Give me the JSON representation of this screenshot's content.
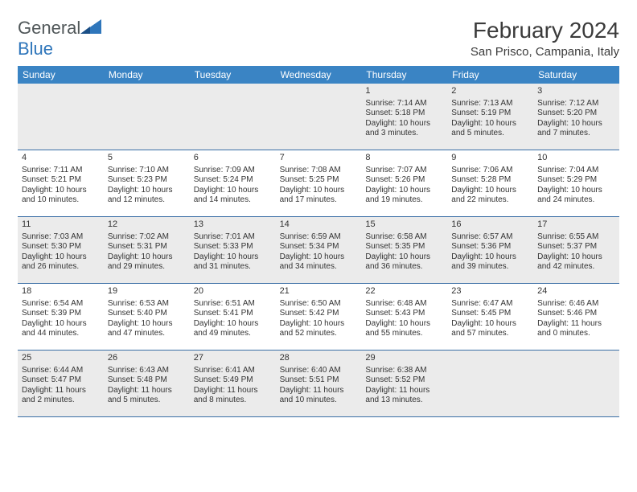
{
  "logo": {
    "text1": "General",
    "text2": "Blue"
  },
  "title": "February 2024",
  "location": "San Prisco, Campania, Italy",
  "colors": {
    "header_bg": "#3a84c4",
    "header_text": "#ffffff",
    "row_border": "#3a6ea5",
    "shaded_bg": "#ebebeb",
    "body_text": "#333333",
    "logo_gray": "#505759",
    "logo_blue": "#2f76bb",
    "page_bg": "#ffffff"
  },
  "weekdays": [
    "Sunday",
    "Monday",
    "Tuesday",
    "Wednesday",
    "Thursday",
    "Friday",
    "Saturday"
  ],
  "weeks": [
    [
      {
        "n": "",
        "sr": "",
        "ss": "",
        "dl": ""
      },
      {
        "n": "",
        "sr": "",
        "ss": "",
        "dl": ""
      },
      {
        "n": "",
        "sr": "",
        "ss": "",
        "dl": ""
      },
      {
        "n": "",
        "sr": "",
        "ss": "",
        "dl": ""
      },
      {
        "n": "1",
        "sr": "Sunrise: 7:14 AM",
        "ss": "Sunset: 5:18 PM",
        "dl": "Daylight: 10 hours and 3 minutes."
      },
      {
        "n": "2",
        "sr": "Sunrise: 7:13 AM",
        "ss": "Sunset: 5:19 PM",
        "dl": "Daylight: 10 hours and 5 minutes."
      },
      {
        "n": "3",
        "sr": "Sunrise: 7:12 AM",
        "ss": "Sunset: 5:20 PM",
        "dl": "Daylight: 10 hours and 7 minutes."
      }
    ],
    [
      {
        "n": "4",
        "sr": "Sunrise: 7:11 AM",
        "ss": "Sunset: 5:21 PM",
        "dl": "Daylight: 10 hours and 10 minutes."
      },
      {
        "n": "5",
        "sr": "Sunrise: 7:10 AM",
        "ss": "Sunset: 5:23 PM",
        "dl": "Daylight: 10 hours and 12 minutes."
      },
      {
        "n": "6",
        "sr": "Sunrise: 7:09 AM",
        "ss": "Sunset: 5:24 PM",
        "dl": "Daylight: 10 hours and 14 minutes."
      },
      {
        "n": "7",
        "sr": "Sunrise: 7:08 AM",
        "ss": "Sunset: 5:25 PM",
        "dl": "Daylight: 10 hours and 17 minutes."
      },
      {
        "n": "8",
        "sr": "Sunrise: 7:07 AM",
        "ss": "Sunset: 5:26 PM",
        "dl": "Daylight: 10 hours and 19 minutes."
      },
      {
        "n": "9",
        "sr": "Sunrise: 7:06 AM",
        "ss": "Sunset: 5:28 PM",
        "dl": "Daylight: 10 hours and 22 minutes."
      },
      {
        "n": "10",
        "sr": "Sunrise: 7:04 AM",
        "ss": "Sunset: 5:29 PM",
        "dl": "Daylight: 10 hours and 24 minutes."
      }
    ],
    [
      {
        "n": "11",
        "sr": "Sunrise: 7:03 AM",
        "ss": "Sunset: 5:30 PM",
        "dl": "Daylight: 10 hours and 26 minutes."
      },
      {
        "n": "12",
        "sr": "Sunrise: 7:02 AM",
        "ss": "Sunset: 5:31 PM",
        "dl": "Daylight: 10 hours and 29 minutes."
      },
      {
        "n": "13",
        "sr": "Sunrise: 7:01 AM",
        "ss": "Sunset: 5:33 PM",
        "dl": "Daylight: 10 hours and 31 minutes."
      },
      {
        "n": "14",
        "sr": "Sunrise: 6:59 AM",
        "ss": "Sunset: 5:34 PM",
        "dl": "Daylight: 10 hours and 34 minutes."
      },
      {
        "n": "15",
        "sr": "Sunrise: 6:58 AM",
        "ss": "Sunset: 5:35 PM",
        "dl": "Daylight: 10 hours and 36 minutes."
      },
      {
        "n": "16",
        "sr": "Sunrise: 6:57 AM",
        "ss": "Sunset: 5:36 PM",
        "dl": "Daylight: 10 hours and 39 minutes."
      },
      {
        "n": "17",
        "sr": "Sunrise: 6:55 AM",
        "ss": "Sunset: 5:37 PM",
        "dl": "Daylight: 10 hours and 42 minutes."
      }
    ],
    [
      {
        "n": "18",
        "sr": "Sunrise: 6:54 AM",
        "ss": "Sunset: 5:39 PM",
        "dl": "Daylight: 10 hours and 44 minutes."
      },
      {
        "n": "19",
        "sr": "Sunrise: 6:53 AM",
        "ss": "Sunset: 5:40 PM",
        "dl": "Daylight: 10 hours and 47 minutes."
      },
      {
        "n": "20",
        "sr": "Sunrise: 6:51 AM",
        "ss": "Sunset: 5:41 PM",
        "dl": "Daylight: 10 hours and 49 minutes."
      },
      {
        "n": "21",
        "sr": "Sunrise: 6:50 AM",
        "ss": "Sunset: 5:42 PM",
        "dl": "Daylight: 10 hours and 52 minutes."
      },
      {
        "n": "22",
        "sr": "Sunrise: 6:48 AM",
        "ss": "Sunset: 5:43 PM",
        "dl": "Daylight: 10 hours and 55 minutes."
      },
      {
        "n": "23",
        "sr": "Sunrise: 6:47 AM",
        "ss": "Sunset: 5:45 PM",
        "dl": "Daylight: 10 hours and 57 minutes."
      },
      {
        "n": "24",
        "sr": "Sunrise: 6:46 AM",
        "ss": "Sunset: 5:46 PM",
        "dl": "Daylight: 11 hours and 0 minutes."
      }
    ],
    [
      {
        "n": "25",
        "sr": "Sunrise: 6:44 AM",
        "ss": "Sunset: 5:47 PM",
        "dl": "Daylight: 11 hours and 2 minutes."
      },
      {
        "n": "26",
        "sr": "Sunrise: 6:43 AM",
        "ss": "Sunset: 5:48 PM",
        "dl": "Daylight: 11 hours and 5 minutes."
      },
      {
        "n": "27",
        "sr": "Sunrise: 6:41 AM",
        "ss": "Sunset: 5:49 PM",
        "dl": "Daylight: 11 hours and 8 minutes."
      },
      {
        "n": "28",
        "sr": "Sunrise: 6:40 AM",
        "ss": "Sunset: 5:51 PM",
        "dl": "Daylight: 11 hours and 10 minutes."
      },
      {
        "n": "29",
        "sr": "Sunrise: 6:38 AM",
        "ss": "Sunset: 5:52 PM",
        "dl": "Daylight: 11 hours and 13 minutes."
      },
      {
        "n": "",
        "sr": "",
        "ss": "",
        "dl": ""
      },
      {
        "n": "",
        "sr": "",
        "ss": "",
        "dl": ""
      }
    ]
  ]
}
